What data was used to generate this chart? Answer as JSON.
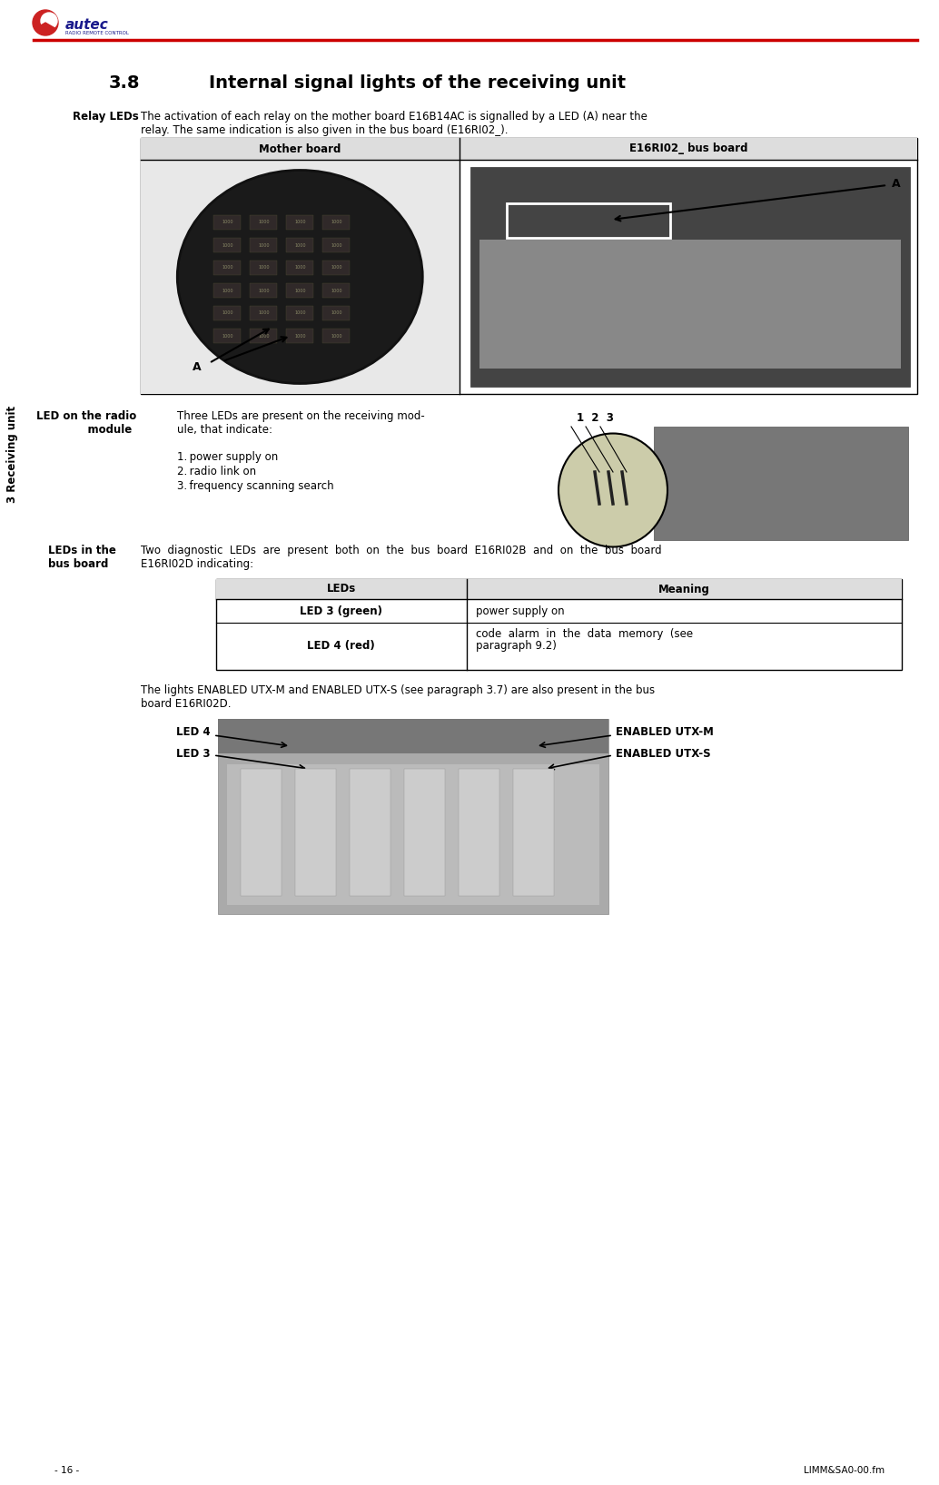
{
  "page_width": 10.34,
  "page_height": 16.36,
  "bg_color": "#ffffff",
  "red_line_color": "#cc0000",
  "sidebar_text": "3 Receiving unit",
  "section_number": "3.8",
  "section_title": "Internal signal lights of the receiving unit",
  "relay_leds_label": "Relay LEDs",
  "relay_leds_text1": "The activation of each relay on the mother board E16B14AC is signalled by a LED (A) near the",
  "relay_leds_text2": "relay. The same indication is also given in the bus board (E16RI02_).",
  "table_col1_header": "Mother board",
  "table_col2_header": "E16RI02_ bus board",
  "led_radio_label1": "LED on the radio",
  "led_radio_label2": "    module",
  "led_radio_line1": "Three LEDs are present on the receiving mod-",
  "led_radio_line2": "ule, that indicate:",
  "led_radio_items": [
    "1. power supply on",
    "2. radio link on",
    "3. frequency scanning search"
  ],
  "led_numbers": "1  2  3",
  "leds_bus_label1": "LEDs in the",
  "leds_bus_label2": "bus board",
  "leds_bus_line1": "Two  diagnostic  LEDs  are  present  both  on  the  bus  board  E16RI02B  and  on  the  bus  board",
  "leds_bus_line2": "E16RI02D indicating:",
  "table2_headers": [
    "LEDs",
    "Meaning"
  ],
  "table2_row1": [
    "LED 3 (green)",
    "power supply on"
  ],
  "table2_row2_col1": "LED 4 (red)",
  "table2_row2_col2a": "code  alarm  in  the  data  memory  (see",
  "table2_row2_col2b": "paragraph 9.2)",
  "bottom_text1": "The lights ENABLED UTX-M and ENABLED UTX-S (see paragraph 3.7) are also present in the bus",
  "bottom_text2": "board E16RI02D.",
  "label_led4": "LED 4",
  "label_led3": "LED 3",
  "label_enabled_utxm": "ENABLED UTX-M",
  "label_enabled_utxs": "ENABLED UTX-S",
  "footer_left": "- 16 -",
  "footer_right": "LIMM&SA0-00.fm"
}
